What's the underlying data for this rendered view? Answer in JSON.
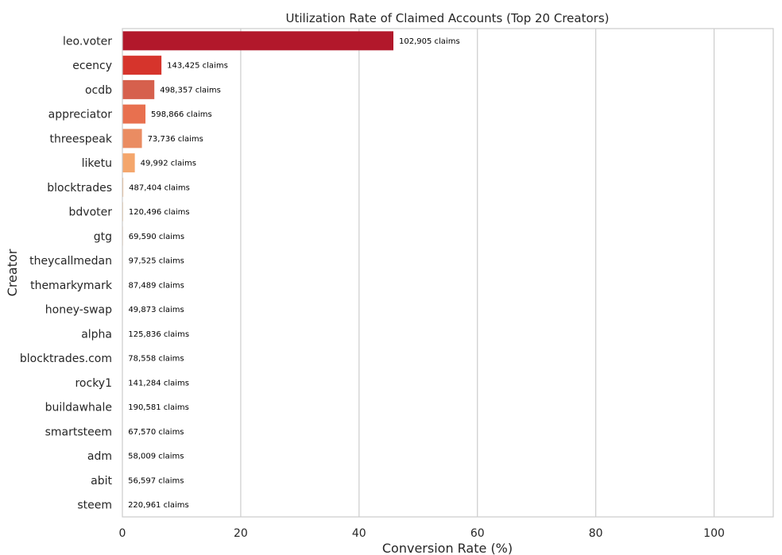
{
  "chart_data": {
    "type": "bar",
    "orientation": "horizontal",
    "title": "Utilization Rate of Claimed Accounts (Top 20 Creators)",
    "xlabel": "Conversion Rate (%)",
    "ylabel": "Creator",
    "xlim": [
      0,
      110
    ],
    "xticks": [
      0,
      20,
      40,
      60,
      80,
      100
    ],
    "grid": "vertical",
    "categories": [
      "leo.voter",
      "ecency",
      "ocdb",
      "appreciator",
      "threespeak",
      "liketu",
      "blocktrades",
      "bdvoter",
      "gtg",
      "theycallmedan",
      "themarkymark",
      "honey-swap",
      "alpha",
      "blocktrades.com",
      "rocky1",
      "buildawhale",
      "smartsteem",
      "adm",
      "abit",
      "steem"
    ],
    "values": [
      45.8,
      6.6,
      5.4,
      3.9,
      3.3,
      2.1,
      0.15,
      0.12,
      0.1,
      0.08,
      0.07,
      0.06,
      0.05,
      0.04,
      0.04,
      0.03,
      0.03,
      0.02,
      0.02,
      0.01
    ],
    "data_labels": [
      "102,905 claims",
      "143,425 claims",
      "498,357 claims",
      "598,866 claims",
      "73,736 claims",
      "49,992 claims",
      "487,404 claims",
      "120,496 claims",
      "69,590 claims",
      "97,525 claims",
      "87,489 claims",
      "49,873 claims",
      "125,836 claims",
      "78,558 claims",
      "141,284 claims",
      "190,581 claims",
      "67,570 claims",
      "58,009 claims",
      "56,597 claims",
      "220,961 claims"
    ],
    "colors": [
      "#b2182b",
      "#d6342c",
      "#d6604d",
      "#e8704f",
      "#ea8c62",
      "#f4a66c",
      "#f7b77b",
      "#f9c48f",
      "#fbd0a2",
      "#fcdbb3",
      "#fde3c2",
      "#fde9cf",
      "#feeedb",
      "#fdf2e6",
      "#fcf2ea",
      "#faf3ee",
      "#f7f5f3",
      "#f4f6f7",
      "#f0f4f7",
      "#ecf2f6"
    ]
  }
}
